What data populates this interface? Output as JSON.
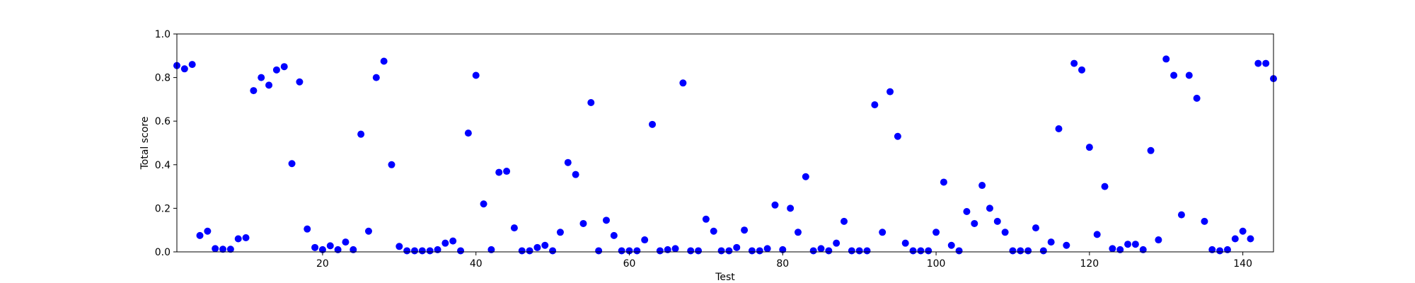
{
  "chart_data": {
    "type": "scatter",
    "title": "",
    "xlabel": "Test",
    "ylabel": "Total score",
    "xlim": [
      1,
      144
    ],
    "ylim": [
      0,
      1.0
    ],
    "x_ticks": [
      20,
      40,
      60,
      80,
      100,
      120,
      140
    ],
    "y_ticks": [
      0.0,
      0.2,
      0.4,
      0.6,
      0.8,
      1.0
    ],
    "y_tick_labels": [
      "0.0",
      "0.2",
      "0.4",
      "0.6",
      "0.8",
      "1.0"
    ],
    "grid": false,
    "legend": "none",
    "marker_color": "#0000ff",
    "series": [
      {
        "x": [
          1,
          2,
          3,
          4,
          5,
          6,
          7,
          8,
          9,
          10,
          11,
          12,
          13,
          14,
          15,
          16,
          17,
          18,
          19,
          20,
          21,
          22,
          23,
          24,
          25,
          26,
          27,
          28,
          29,
          30,
          31,
          32,
          33,
          34,
          35,
          36,
          37,
          38,
          39,
          40,
          41,
          42,
          43,
          44,
          45,
          46,
          47,
          48,
          49,
          50,
          51,
          52,
          53,
          54,
          55,
          56,
          57,
          58,
          59,
          60,
          61,
          62,
          63,
          64,
          65,
          66,
          67,
          68,
          69,
          70,
          71,
          72,
          73,
          74,
          75,
          76,
          77,
          78,
          79,
          80,
          81,
          82,
          83,
          84,
          85,
          86,
          87,
          88,
          89,
          90,
          91,
          92,
          93,
          94,
          95,
          96,
          97,
          98,
          99,
          100,
          101,
          102,
          103,
          104,
          105,
          106,
          107,
          108,
          109,
          110,
          111,
          112,
          113,
          114,
          115,
          116,
          117,
          118,
          119,
          120,
          121,
          122,
          123,
          124,
          125,
          126,
          127,
          128,
          129,
          130,
          131,
          132,
          133,
          134,
          135,
          136,
          137,
          138,
          139,
          140,
          141,
          142,
          143,
          144
        ],
        "y": [
          0.855,
          0.84,
          0.86,
          0.075,
          0.095,
          0.015,
          0.012,
          0.012,
          0.06,
          0.065,
          0.74,
          0.8,
          0.765,
          0.835,
          0.85,
          0.405,
          0.78,
          0.105,
          0.02,
          0.01,
          0.028,
          0.01,
          0.045,
          0.01,
          0.54,
          0.095,
          0.8,
          0.875,
          0.4,
          0.025,
          0.005,
          0.005,
          0.005,
          0.005,
          0.01,
          0.04,
          0.05,
          0.005,
          0.545,
          0.81,
          0.22,
          0.01,
          0.365,
          0.37,
          0.11,
          0.005,
          0.005,
          0.02,
          0.03,
          0.005,
          0.09,
          0.41,
          0.355,
          0.13,
          0.685,
          0.005,
          0.145,
          0.075,
          0.005,
          0.005,
          0.005,
          0.055,
          0.585,
          0.005,
          0.01,
          0.015,
          0.775,
          0.005,
          0.005,
          0.15,
          0.095,
          0.005,
          0.005,
          0.02,
          0.1,
          0.005,
          0.005,
          0.015,
          0.215,
          0.01,
          0.2,
          0.09,
          0.345,
          0.005,
          0.015,
          0.005,
          0.04,
          0.14,
          0.005,
          0.005,
          0.005,
          0.675,
          0.09,
          0.735,
          0.53,
          0.04,
          0.005,
          0.005,
          0.005,
          0.09,
          0.32,
          0.03,
          0.005,
          0.185,
          0.13,
          0.305,
          0.2,
          0.14,
          0.09,
          0.005,
          0.005,
          0.005,
          0.11,
          0.005,
          0.045,
          0.565,
          0.03,
          0.865,
          0.835,
          0.48,
          0.08,
          0.3,
          0.015,
          0.01,
          0.035,
          0.035,
          0.01,
          0.465,
          0.055,
          0.885,
          0.81,
          0.17,
          0.81,
          0.705,
          0.14,
          0.01,
          0.005,
          0.01,
          0.06,
          0.095,
          0.06,
          0.865,
          0.865,
          0.795
        ]
      }
    ]
  }
}
